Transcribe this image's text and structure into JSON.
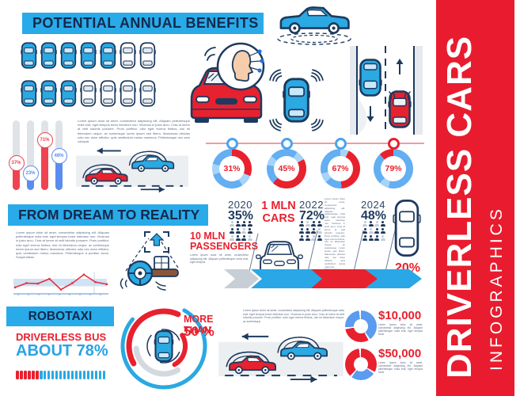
{
  "header": {
    "title": "POTENTIAL ANNUAL BENEFITS"
  },
  "section2": {
    "title": "FROM DREAM TO REALITY"
  },
  "section3": {
    "title": "ROBOTAXI"
  },
  "sidebar": {
    "title": "DRIVERLESS CARS",
    "subtitle": "INFOGRAPHICS",
    "bg": "#e81c2e"
  },
  "colors": {
    "accent_blue": "#29abe9",
    "accent_red": "#e8212e",
    "navy": "#1d3a5e",
    "light_blue": "#64aef2",
    "pale_blue": "#a6d3f8",
    "track_gray": "#dfe3e8"
  },
  "stats": {
    "passengers": "10 MLN PASSENGERS",
    "million_cars": "1 MLN CARS",
    "car_share": "20%",
    "driverless_bus_label": "DRIVERLESS BUS",
    "driverless_bus_value": "ABOUT 78%",
    "more_than_label": "MORE THAN",
    "more_than_value": "50 %",
    "cost_low": "$10,000",
    "cost_high": "$50,000"
  },
  "timeline": {
    "years": [
      {
        "year": "2020",
        "pct": "35%",
        "people": [
          0,
          1,
          1,
          1,
          1,
          1,
          0,
          1,
          0,
          1,
          1,
          0
        ]
      },
      {
        "year": "2022",
        "pct": "72%",
        "people": [
          1,
          0,
          1,
          1,
          1,
          1,
          1,
          0,
          1,
          1,
          0,
          1
        ]
      },
      {
        "year": "2024",
        "pct": "48%",
        "people": [
          0,
          1,
          0,
          1,
          1,
          0,
          1,
          1,
          1,
          1,
          1,
          0
        ]
      }
    ]
  },
  "lorem": {
    "block1": "Lorem ipsum dolor sit amet, consectetur adipiscing elit. Aliquam pellentesque nulla erat, eget tempus tortor interdum non. Vivamus in justo arcu. Cras at lorem at velit lobortis posuere. Proin porttitor, odio eget viverra finibus, nisl mi bibendum neque, ac scelerisque lorem ipsum sed libero. Maecenas ultricies odio nec dolor efficitur, quis vestibulum metus maximus. Pellentesque nec sem volutpat.",
    "block2": "Lorem ipsum dolor sit amet, consectetur adipiscing elit. Aliquam pellentesque nulla erat, eget tempus tortor interdum non. Vivamus in justo arcu. Cras at lorem at velit lobortis posuere. Proin porttitor, odio eget viverra finibus, nisl mi bibendum neque, ac scelerisque lorem ipsum sed libero. Maecenas ultricies odio nec dolor efficitur, quis vestibulum metus maximus. Pellentesque a porttitor lacus. Suspendisse.",
    "block3": "Lorem ipsum dolor sit amet, consectetur adipiscing elit. Aliquam pellentesque nulla erat, eget tempus",
    "block4": "Lorem ipsum dolor sit amet, consectetur adipiscing elit. Aliquam pellentesque nulla erat, eget tempus tortor interdum non. Vivamus in justo arcu. Cras at lorem at velit lobortis posuere. Proin porttitor, odio eget viverra finibus, nisl mi bibendum neque, ac scelerisque lorem ipsum sed libero. Maecenas ultricies odio nec dolor efficitur, quis vestibulum metus maximus. Pellentesque a",
    "block5": "Lorem ipsum dolor sit amet, consectetur adipiscing elit. Aliquam pellentesque nulla erat, eget tempus tortor interdum non. Vivamus in justo arcu. Cras at lorem at velit lobortis posuere. Proin porttitor, odio eget viverra finibus, nisl mi bibendum neque, ac scelerisque",
    "block6": "Lorem ipsum dolor sit amet, consectetur adipiscing elit. Aliquam pellentesque nulla erat, eget tempus tortor",
    "block7": "Lorem ipsum dolor sit amet, consectetur adipiscing elit. Aliquam pellentesque nulla erat, eget tempus tortor"
  },
  "chart_data": [
    {
      "id": "car_fleet_pictograph",
      "type": "pictograph",
      "rows": [
        [
          "blue",
          "blue",
          "blue",
          "blue",
          "blue",
          "white",
          "white"
        ],
        [
          "blue",
          "blue",
          "blue",
          "white",
          "white",
          "white",
          "white"
        ]
      ],
      "highlighted": 8,
      "total": 14
    },
    {
      "id": "benefit_bars",
      "type": "bar",
      "categories": [
        "bar1",
        "bar2",
        "bar3",
        "bar4"
      ],
      "values": [
        37,
        23,
        71,
        48
      ],
      "labels": [
        "37%",
        "23%",
        "71%",
        "48%"
      ],
      "colors": [
        "#ef4351",
        "#5b8df0",
        "#ef4351",
        "#5b8df0"
      ],
      "ylim": [
        0,
        100
      ],
      "track_color": "#dfe3e8"
    },
    {
      "id": "adoption_donuts",
      "type": "donut",
      "marker_colors": [
        "#4aa4ee",
        "#4aa4ee",
        "#4aa4ee",
        "#e8212e"
      ],
      "items": [
        {
          "label": "31%",
          "value": 31,
          "segments": [
            [
              "#e8212e",
              0,
              31
            ],
            [
              "#a6d3f8",
              31,
              41
            ],
            [
              "#64aef2",
              41,
              70
            ],
            [
              "#a6d3f8",
              70,
              79
            ],
            [
              "#64aef2",
              79,
              100
            ]
          ]
        },
        {
          "label": "45%",
          "value": 45,
          "segments": [
            [
              "#64aef2",
              0,
              9
            ],
            [
              "#a6d3f8",
              9,
              17
            ],
            [
              "#e8212e",
              17,
              62
            ],
            [
              "#64aef2",
              62,
              78
            ],
            [
              "#a6d3f8",
              78,
              86
            ],
            [
              "#64aef2",
              86,
              100
            ]
          ]
        },
        {
          "label": "67%",
          "value": 67,
          "segments": [
            [
              "#a6d3f8",
              0,
              7
            ],
            [
              "#e8212e",
              7,
              49
            ],
            [
              "#64aef2",
              49,
              63
            ],
            [
              "#a6d3f8",
              63,
              71
            ],
            [
              "#64aef2",
              71,
              100
            ]
          ]
        },
        {
          "label": "79%",
          "value": 79,
          "segments": [
            [
              "#64aef2",
              0,
              54
            ],
            [
              "#a6d3f8",
              54,
              62
            ],
            [
              "#64aef2",
              62,
              88
            ],
            [
              "#e8212e",
              88,
              100
            ]
          ]
        }
      ]
    },
    {
      "id": "dream_trend_line",
      "type": "line",
      "x": [
        1,
        2,
        3,
        4,
        5,
        6,
        7,
        8,
        9
      ],
      "values": [
        3,
        5,
        4.8,
        7,
        2,
        5,
        9,
        5.5,
        4.5
      ],
      "ylim": [
        0,
        10
      ],
      "band": [
        3.5,
        7
      ],
      "line_color": "#e8303c",
      "band_color": "#cfe3f5"
    },
    {
      "id": "robotaxi_progress",
      "type": "progress",
      "total_segments": 23,
      "red_segments": 6,
      "red_color": "#e8212e",
      "blue_color": "#2aa9e2",
      "value_label": "ABOUT 78%"
    },
    {
      "id": "cost_donuts",
      "type": "donut",
      "items": [
        {
          "label": "$10,000",
          "segments": [
            [
              "#5b9bf0",
              0,
              40
            ],
            [
              "#ffffff",
              40,
              42
            ],
            [
              "#e8212e",
              42,
              72
            ],
            [
              "#ffffff",
              72,
              74
            ],
            [
              "#5b9bf0",
              74,
              98
            ],
            [
              "#ffffff",
              98,
              100
            ]
          ]
        },
        {
          "label": "$50,000",
          "segments": [
            [
              "#e8212e",
              0,
              33
            ],
            [
              "#ffffff",
              33,
              35
            ],
            [
              "#5b9bf0",
              35,
              60
            ],
            [
              "#ffffff",
              60,
              62
            ],
            [
              "#e8212e",
              62,
              98
            ],
            [
              "#ffffff",
              98,
              100
            ]
          ]
        }
      ]
    }
  ]
}
